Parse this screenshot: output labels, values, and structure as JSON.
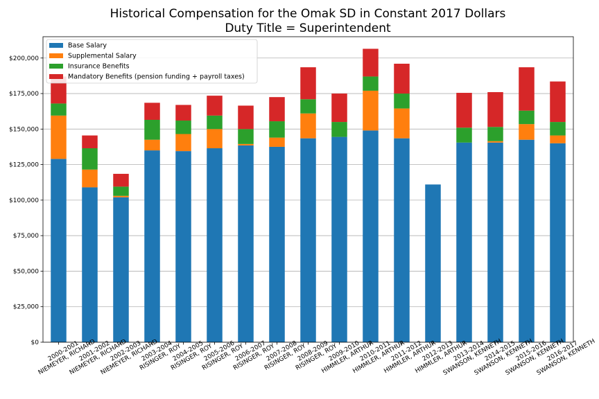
{
  "chart_data": {
    "type": "bar",
    "stacked": true,
    "title": "Historical Compensation for the Omak SD in Constant 2017 Dollars",
    "subtitle": "Duty Title = Superintendent",
    "xlabel": "",
    "ylabel": "",
    "ylim": [
      0,
      215000
    ],
    "yticks": [
      0,
      25000,
      50000,
      75000,
      100000,
      125000,
      150000,
      175000,
      200000
    ],
    "ytick_labels": [
      "$0",
      "$25,000",
      "$50,000",
      "$75,000",
      "$100,000",
      "$125,000",
      "$150,000",
      "$175,000",
      "$200,000"
    ],
    "grid": "horizontal",
    "legend_placement": "top-left",
    "categories": [
      [
        "2000-2001",
        "NIEMEYER, RICHARD"
      ],
      [
        "2001-2002",
        "NIEMEYER, RICHARD"
      ],
      [
        "2002-2003",
        "NIEMEYER, RICHARD"
      ],
      [
        "2003-2004",
        "RISINGER, ROY"
      ],
      [
        "2004-2005",
        "RISINGER, ROY"
      ],
      [
        "2005-2006",
        "RISINGER, ROY"
      ],
      [
        "2006-2007",
        "RISINGER, ROY"
      ],
      [
        "2007-2008",
        "RISINGER, ROY"
      ],
      [
        "2008-2009",
        "RISINGER, ROY"
      ],
      [
        "2009-2010",
        "HIMMLER, ARTHUR"
      ],
      [
        "2010-2011",
        "HIMMLER, ARTHUR"
      ],
      [
        "2011-2012",
        "HIMMLER, ARTHUR"
      ],
      [
        "2012-2013",
        "HIMMLER, ARTHUR"
      ],
      [
        "2013-2014",
        "SWANSON, KENNETH"
      ],
      [
        "2014-2015",
        "SWANSON, KENNETH"
      ],
      [
        "2015-2016",
        "SWANSON, KENNETH"
      ],
      [
        "2016-2017",
        "SWANSON, KENNETH"
      ]
    ],
    "series": [
      {
        "name": "Base Salary",
        "color": "#1f77b4",
        "values": [
          129000,
          109000,
          102000,
          135000,
          134500,
          136500,
          138500,
          137500,
          143500,
          144500,
          149000,
          143500,
          111000,
          140500,
          140500,
          142500,
          140000
        ]
      },
      {
        "name": "Supplemental Salary",
        "color": "#ff7f0e",
        "values": [
          30500,
          12500,
          1000,
          7500,
          12000,
          13500,
          1000,
          6500,
          17500,
          0,
          28000,
          21000,
          0,
          0,
          1000,
          11000,
          5500
        ]
      },
      {
        "name": "Insurance Benefits",
        "color": "#2ca02c",
        "values": [
          8500,
          15000,
          6500,
          14000,
          9500,
          9500,
          10500,
          11500,
          10000,
          10500,
          10000,
          10500,
          0,
          10500,
          10000,
          9500,
          9500
        ]
      },
      {
        "name": "Mandatory Benefits (pension funding + payroll taxes)",
        "color": "#d62728",
        "values": [
          19000,
          9000,
          9000,
          12000,
          11000,
          14000,
          16500,
          17000,
          22500,
          20000,
          19500,
          21000,
          0,
          24500,
          24500,
          30500,
          28500
        ]
      }
    ]
  }
}
